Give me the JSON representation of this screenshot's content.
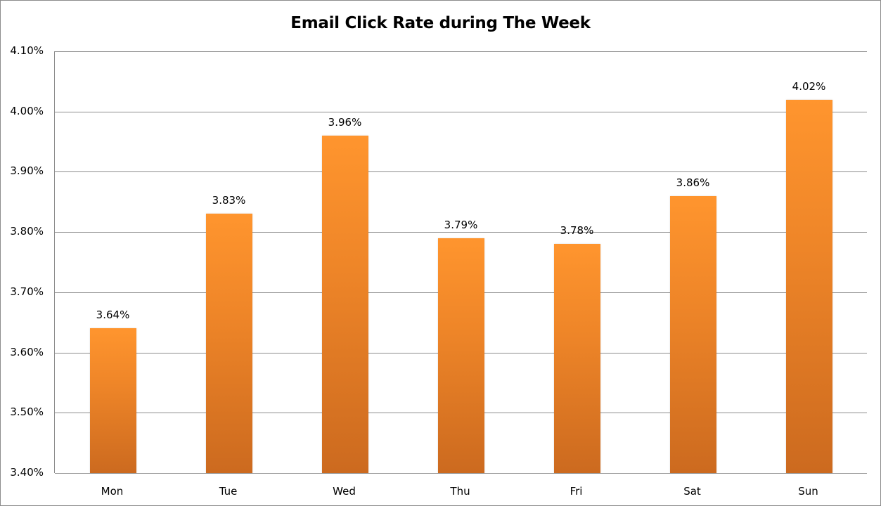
{
  "chart_data": {
    "type": "bar",
    "title": "Email Click Rate during The Week",
    "xlabel": "",
    "ylabel": "",
    "categories": [
      "Mon",
      "Tue",
      "Wed",
      "Thu",
      "Fri",
      "Sat",
      "Sun"
    ],
    "values": [
      3.64,
      3.83,
      3.96,
      3.79,
      3.78,
      3.86,
      4.02
    ],
    "value_labels": [
      "3.64%",
      "3.83%",
      "3.96%",
      "3.79%",
      "3.78%",
      "3.86%",
      "4.02%"
    ],
    "ylim": [
      3.4,
      4.1
    ],
    "yticks": [
      "4.10%",
      "4.00%",
      "3.90%",
      "3.80%",
      "3.70%",
      "3.60%",
      "3.50%",
      "3.40%"
    ],
    "grid": true,
    "legend": null,
    "bar_color": "#f08a2a"
  }
}
